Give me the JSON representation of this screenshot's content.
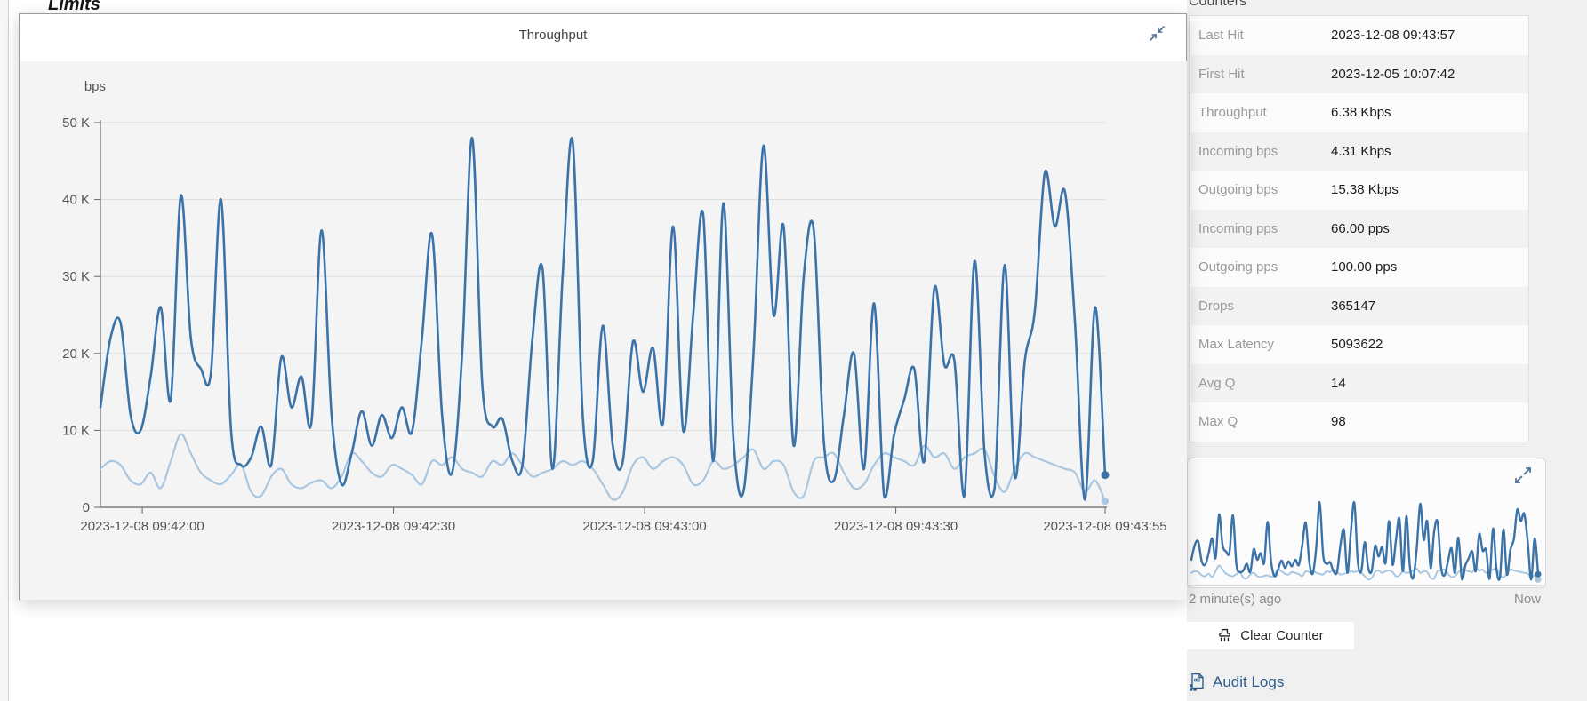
{
  "page": {
    "section_heading": "Limits"
  },
  "modal": {
    "title": "Throughput"
  },
  "counters": {
    "heading": "Counters",
    "rows": [
      {
        "label": "Last Hit",
        "value": "2023-12-08 09:43:57"
      },
      {
        "label": "First Hit",
        "value": "2023-12-05 10:07:42"
      },
      {
        "label": "Throughput",
        "value": "6.38 Kbps"
      },
      {
        "label": "Incoming bps",
        "value": "4.31 Kbps"
      },
      {
        "label": "Outgoing bps",
        "value": "15.38 Kbps"
      },
      {
        "label": "Incoming pps",
        "value": "66.00 pps"
      },
      {
        "label": "Outgoing pps",
        "value": "100.00 pps"
      },
      {
        "label": "Drops",
        "value": "365147"
      },
      {
        "label": "Max Latency",
        "value": "5093622"
      },
      {
        "label": "Avg Q",
        "value": "14"
      },
      {
        "label": "Max Q",
        "value": "98"
      }
    ]
  },
  "preview": {
    "start_label": "2 minute(s) ago",
    "end_label": "Now"
  },
  "actions": {
    "clear_button": "Clear Counter",
    "audit_link": "Audit Logs"
  },
  "colors": {
    "series_dark": "#3b73a8",
    "series_light": "#a9c7e1",
    "grid": "#dedede",
    "axis": "#666666",
    "axis_text": "#555555",
    "icon_blue": "#4d6e91"
  },
  "chart_data": {
    "type": "line",
    "title": "Throughput",
    "ylabel": "bps",
    "unit": "Kbps",
    "ylim": [
      0,
      50
    ],
    "y_ticks": [
      "0",
      "10 K",
      "20 K",
      "30 K",
      "40 K",
      "50 K"
    ],
    "y_tick_values": [
      0,
      10,
      20,
      30,
      40,
      50
    ],
    "x_domain_seconds": [
      0,
      120
    ],
    "x_ticks": [
      {
        "t": 5,
        "label": "2023-12-08 09:42:00"
      },
      {
        "t": 35,
        "label": "2023-12-08 09:42:30"
      },
      {
        "t": 65,
        "label": "2023-12-08 09:43:00"
      },
      {
        "t": 95,
        "label": "2023-12-08 09:43:30"
      },
      {
        "t": 120,
        "label": "2023-12-08 09:43:55"
      }
    ],
    "grid": true,
    "legend": "none",
    "series": [
      {
        "name": "Outgoing bps",
        "color": "#3b73a8",
        "width": 2.6,
        "values": [
          13,
          22,
          24,
          12,
          10,
          17,
          26,
          14,
          40.5,
          22,
          18,
          17.5,
          40,
          10,
          5.5,
          6.5,
          10.5,
          5.5,
          19.5,
          13,
          17,
          11,
          36,
          12,
          3,
          7,
          12.5,
          8,
          12,
          9,
          13,
          9.8,
          22,
          35.5,
          12,
          4.5,
          20,
          48,
          16,
          10.5,
          11.5,
          6,
          5.5,
          22,
          31,
          5,
          30,
          47.6,
          12,
          6,
          23.6,
          8,
          6,
          21.5,
          15,
          20.7,
          11,
          36.5,
          10,
          25,
          38,
          6,
          39.5,
          9,
          2,
          20,
          47,
          25,
          36.5,
          8,
          30,
          36,
          8.5,
          3.5,
          12,
          20,
          5,
          26.5,
          1.5,
          9.5,
          14,
          18,
          6,
          28.5,
          18.5,
          19,
          1.5,
          32,
          7,
          2.5,
          31.5,
          4,
          19,
          25.5,
          43.5,
          36.5,
          41,
          24,
          1,
          26,
          4.2
        ]
      },
      {
        "name": "Incoming bps",
        "color": "#a9c7e1",
        "width": 2.2,
        "values": [
          5,
          6,
          5.5,
          3.5,
          3,
          4.5,
          2.5,
          6,
          9.5,
          7,
          4.5,
          3.5,
          3,
          4.2,
          5.5,
          2,
          1.5,
          4,
          5,
          3,
          2.5,
          3.2,
          3.5,
          2.5,
          4,
          7,
          6,
          4.5,
          4,
          5.5,
          5,
          4.2,
          3,
          6,
          5.5,
          6.5,
          5,
          4.5,
          4,
          6,
          5.5,
          7,
          5.5,
          4,
          4.5,
          5,
          6,
          5.5,
          6,
          5,
          3,
          1,
          2,
          5.5,
          6.5,
          5,
          6,
          6.5,
          5.5,
          3,
          3.5,
          6,
          5,
          5.5,
          6.5,
          7.5,
          5,
          6,
          5.5,
          2,
          1.5,
          6,
          6.5,
          7,
          4.5,
          2.5,
          3,
          5.5,
          7,
          6.5,
          6,
          5.5,
          8,
          6.5,
          7,
          5,
          6.5,
          7,
          7.5,
          4,
          2,
          5,
          7,
          6.5,
          6,
          5.5,
          5,
          4.5,
          2,
          3.5,
          0.8
        ]
      }
    ]
  }
}
